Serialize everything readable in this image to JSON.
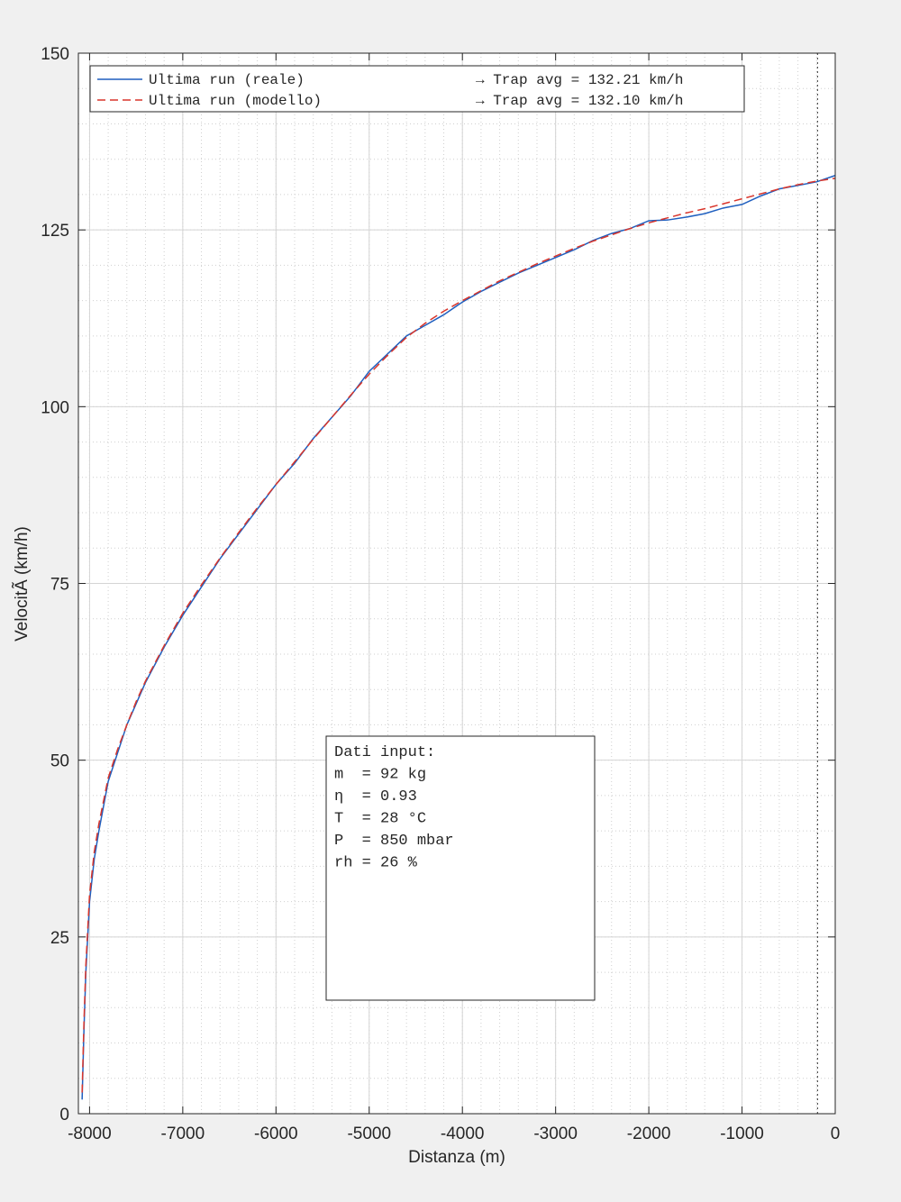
{
  "chart_data": {
    "type": "line",
    "xlabel": "Distanza (m)",
    "ylabel": "VelocitÃ  (km/h)",
    "x": [
      -8080,
      -8060,
      -8040,
      -8000,
      -7950,
      -7900,
      -7800,
      -7700,
      -7600,
      -7500,
      -7400,
      -7200,
      -7000,
      -6800,
      -6600,
      -6400,
      -6200,
      -6000,
      -5800,
      -5600,
      -5400,
      -5200,
      -5000,
      -4800,
      -4600,
      -4400,
      -4200,
      -4000,
      -3800,
      -3600,
      -3400,
      -3200,
      -3000,
      -2800,
      -2600,
      -2400,
      -2200,
      -2000,
      -1800,
      -1600,
      -1400,
      -1200,
      -1000,
      -800,
      -600,
      -400,
      -200,
      0
    ],
    "series": [
      {
        "name": "Ultima run (reale)",
        "color": "#1f5fbf",
        "dash": false,
        "values": [
          2,
          12,
          20,
          30,
          36,
          40,
          47,
          51,
          55,
          58,
          61,
          66,
          70.5,
          74.5,
          78.5,
          82,
          85.5,
          89,
          92,
          95.5,
          98.5,
          101.5,
          105,
          107.5,
          110,
          111.5,
          113,
          114.8,
          116.3,
          117.6,
          118.9,
          120,
          121.1,
          122.2,
          123.5,
          124.5,
          125.2,
          126.3,
          126.4,
          126.8,
          127.3,
          128.1,
          128.6,
          129.8,
          130.8,
          131.3,
          131.8,
          132.7
        ]
      },
      {
        "name": "Ultima run (modello)",
        "color": "#d9352b",
        "dash": true,
        "values": [
          3,
          13,
          21,
          31,
          37,
          41,
          47.5,
          51.5,
          55,
          58.3,
          61.2,
          66.2,
          70.8,
          74.8,
          78.6,
          82.2,
          85.7,
          89,
          92.2,
          95.4,
          98.5,
          101.6,
          104.6,
          107.3,
          109.8,
          111.8,
          113.5,
          115,
          116.4,
          117.8,
          119,
          120.2,
          121.3,
          122.4,
          123.4,
          124.3,
          125.2,
          126,
          126.7,
          127.4,
          128,
          128.7,
          129.4,
          130.1,
          130.8,
          131.4,
          131.9,
          132.3
        ]
      }
    ],
    "legend_notes": [
      "→  Trap avg = 132.21 km/h",
      "→  Trap avg = 132.10 km/h"
    ],
    "xlim": [
      -8120,
      0
    ],
    "ylim": [
      0,
      150
    ],
    "xticks": [
      -8000,
      -7000,
      -6000,
      -5000,
      -4000,
      -3000,
      -2000,
      -1000,
      0
    ],
    "yticks": [
      0,
      25,
      50,
      75,
      100,
      125,
      150
    ],
    "grid": true,
    "minor_grid_xstep": 200,
    "minor_grid_ystep": 5,
    "vline": -190,
    "annotation": [
      "Dati input:",
      "m  = 92 kg",
      "η  = 0.93",
      "T  = 28 °C",
      "P  = 850 mbar",
      "rh = 26 %"
    ]
  }
}
